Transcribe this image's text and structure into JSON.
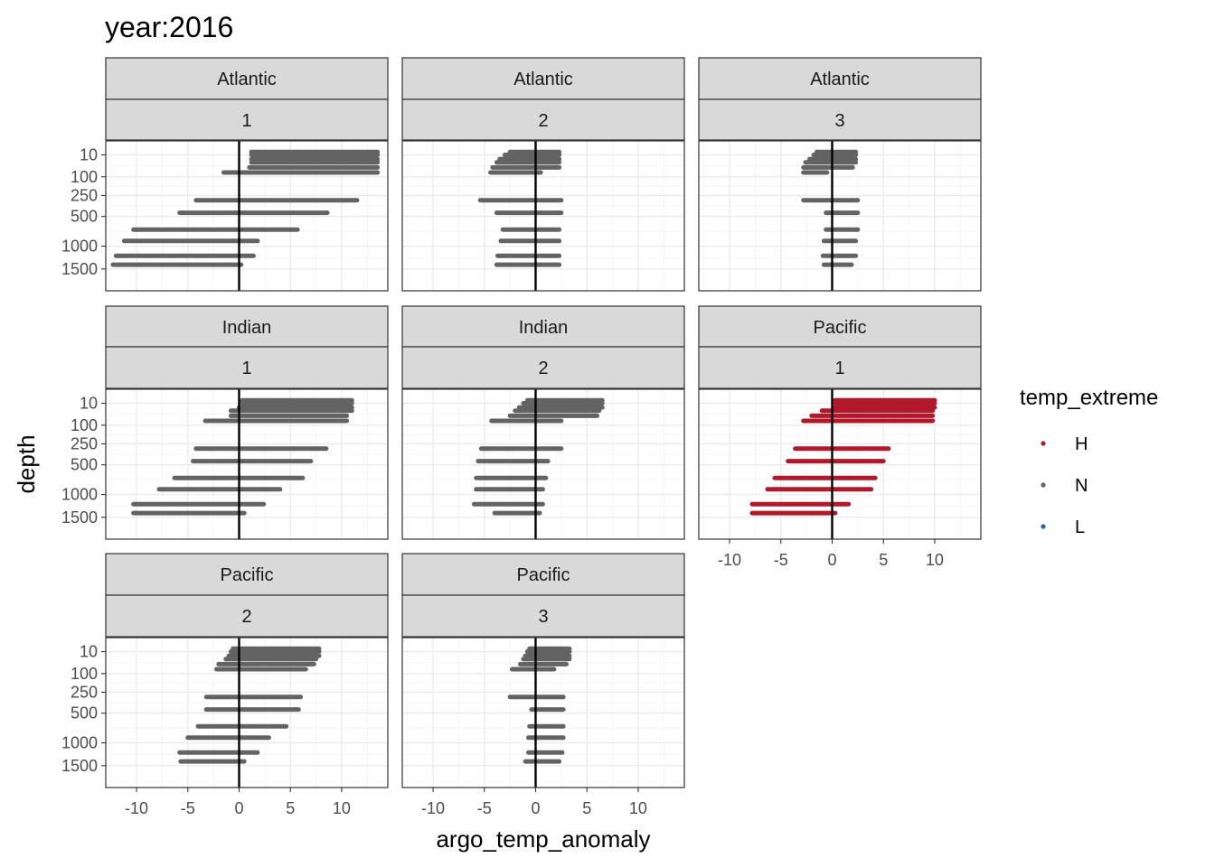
{
  "chart_data": {
    "type": "scatter",
    "title": "year:2016",
    "xlabel": "argo_temp_anomaly",
    "ylabel": "depth",
    "xlim": [
      -13,
      14.5
    ],
    "x_ticks": [
      -10,
      -5,
      0,
      5,
      10
    ],
    "x_tick_labels": [
      "-10",
      "-5",
      "0",
      "5",
      "10"
    ],
    "y_ticks": [
      10,
      100,
      250,
      500,
      1000,
      1500
    ],
    "y_tick_labels": [
      "10",
      "100",
      "250",
      "500",
      "1000",
      "1500"
    ],
    "y_reversed": true,
    "y_scale": "sqrt",
    "reference_line": {
      "x": 0,
      "color": "#000000"
    },
    "grid": true,
    "legend": {
      "title": "temp_extreme",
      "position": "right",
      "entries": [
        {
          "label": "H",
          "color": "#b2182b"
        },
        {
          "label": "N",
          "color": "#636363"
        },
        {
          "label": "L",
          "color": "#2166ac"
        }
      ]
    },
    "panels": [
      {
        "strip_top": "Atlantic",
        "strip_bottom": "1",
        "show_y_axis": true,
        "show_x_axis": false,
        "segments": [
          {
            "depth": 5,
            "xmin": 1.2,
            "xmax": 13.5,
            "group": "N"
          },
          {
            "depth": 10,
            "xmin": 1.2,
            "xmax": 13.5,
            "group": "N"
          },
          {
            "depth": 20,
            "xmin": 1.2,
            "xmax": 13.5,
            "group": "N"
          },
          {
            "depth": 30,
            "xmin": 1.2,
            "xmax": 13.5,
            "group": "N"
          },
          {
            "depth": 50,
            "xmin": 1.0,
            "xmax": 13.5,
            "group": "N"
          },
          {
            "depth": 75,
            "xmin": -1.5,
            "xmax": 13.5,
            "group": "N"
          },
          {
            "depth": 300,
            "xmin": -4.2,
            "xmax": 11.5,
            "group": "N"
          },
          {
            "depth": 450,
            "xmin": -5.8,
            "xmax": 8.6,
            "group": "N"
          },
          {
            "depth": 700,
            "xmin": -10.3,
            "xmax": 5.7,
            "group": "N"
          },
          {
            "depth": 900,
            "xmin": -11.2,
            "xmax": 1.8,
            "group": "N"
          },
          {
            "depth": 1200,
            "xmin": -12.0,
            "xmax": 1.4,
            "group": "N"
          },
          {
            "depth": 1400,
            "xmin": -12.3,
            "xmax": 0.2,
            "group": "N"
          }
        ]
      },
      {
        "strip_top": "Atlantic",
        "strip_bottom": "2",
        "show_y_axis": false,
        "show_x_axis": false,
        "segments": [
          {
            "depth": 5,
            "xmin": -2.5,
            "xmax": 2.3,
            "group": "N"
          },
          {
            "depth": 10,
            "xmin": -3.0,
            "xmax": 2.3,
            "group": "N"
          },
          {
            "depth": 20,
            "xmin": -3.5,
            "xmax": 2.3,
            "group": "N"
          },
          {
            "depth": 30,
            "xmin": -3.8,
            "xmax": 2.3,
            "group": "N"
          },
          {
            "depth": 50,
            "xmin": -4.2,
            "xmax": 2.3,
            "group": "N"
          },
          {
            "depth": 75,
            "xmin": -4.4,
            "xmax": 0.5,
            "group": "N"
          },
          {
            "depth": 300,
            "xmin": -5.4,
            "xmax": 2.5,
            "group": "N"
          },
          {
            "depth": 450,
            "xmin": -3.8,
            "xmax": 2.5,
            "group": "N"
          },
          {
            "depth": 700,
            "xmin": -3.2,
            "xmax": 2.3,
            "group": "N"
          },
          {
            "depth": 900,
            "xmin": -3.4,
            "xmax": 2.3,
            "group": "N"
          },
          {
            "depth": 1200,
            "xmin": -3.7,
            "xmax": 2.3,
            "group": "N"
          },
          {
            "depth": 1400,
            "xmin": -3.8,
            "xmax": 2.3,
            "group": "N"
          }
        ]
      },
      {
        "strip_top": "Atlantic",
        "strip_bottom": "3",
        "show_y_axis": false,
        "show_x_axis": false,
        "segments": [
          {
            "depth": 5,
            "xmin": -1.5,
            "xmax": 2.3,
            "group": "N"
          },
          {
            "depth": 10,
            "xmin": -1.8,
            "xmax": 2.3,
            "group": "N"
          },
          {
            "depth": 20,
            "xmin": -2.2,
            "xmax": 2.3,
            "group": "N"
          },
          {
            "depth": 30,
            "xmin": -2.6,
            "xmax": 2.3,
            "group": "N"
          },
          {
            "depth": 50,
            "xmin": -2.8,
            "xmax": 2.0,
            "group": "N"
          },
          {
            "depth": 75,
            "xmin": -2.8,
            "xmax": -0.5,
            "group": "N"
          },
          {
            "depth": 300,
            "xmin": -2.8,
            "xmax": 2.5,
            "group": "N"
          },
          {
            "depth": 450,
            "xmin": -0.6,
            "xmax": 2.5,
            "group": "N"
          },
          {
            "depth": 700,
            "xmin": -0.6,
            "xmax": 2.5,
            "group": "N"
          },
          {
            "depth": 900,
            "xmin": -0.8,
            "xmax": 2.3,
            "group": "N"
          },
          {
            "depth": 1200,
            "xmin": -0.9,
            "xmax": 2.3,
            "group": "N"
          },
          {
            "depth": 1400,
            "xmin": -0.8,
            "xmax": 1.9,
            "group": "N"
          }
        ]
      },
      {
        "strip_top": "Indian",
        "strip_bottom": "1",
        "show_y_axis": true,
        "show_x_axis": false,
        "segments": [
          {
            "depth": 5,
            "xmin": 0.3,
            "xmax": 11.0,
            "group": "N"
          },
          {
            "depth": 10,
            "xmin": 0.3,
            "xmax": 11.0,
            "group": "N"
          },
          {
            "depth": 20,
            "xmin": 0.0,
            "xmax": 11.0,
            "group": "N"
          },
          {
            "depth": 30,
            "xmin": -0.8,
            "xmax": 11.0,
            "group": "N"
          },
          {
            "depth": 50,
            "xmin": -0.8,
            "xmax": 10.5,
            "group": "N"
          },
          {
            "depth": 75,
            "xmin": -3.3,
            "xmax": 10.5,
            "group": "N"
          },
          {
            "depth": 300,
            "xmin": -4.2,
            "xmax": 8.5,
            "group": "N"
          },
          {
            "depth": 450,
            "xmin": -4.5,
            "xmax": 7.0,
            "group": "N"
          },
          {
            "depth": 700,
            "xmin": -6.3,
            "xmax": 6.2,
            "group": "N"
          },
          {
            "depth": 900,
            "xmin": -7.8,
            "xmax": 4.0,
            "group": "N"
          },
          {
            "depth": 1200,
            "xmin": -10.3,
            "xmax": 2.4,
            "group": "N"
          },
          {
            "depth": 1400,
            "xmin": -10.3,
            "xmax": 0.5,
            "group": "N"
          }
        ]
      },
      {
        "strip_top": "Indian",
        "strip_bottom": "2",
        "show_y_axis": false,
        "show_x_axis": false,
        "segments": [
          {
            "depth": 5,
            "xmin": -0.8,
            "xmax": 6.5,
            "group": "N"
          },
          {
            "depth": 10,
            "xmin": -1.2,
            "xmax": 6.5,
            "group": "N"
          },
          {
            "depth": 20,
            "xmin": -1.6,
            "xmax": 6.5,
            "group": "N"
          },
          {
            "depth": 30,
            "xmin": -2.0,
            "xmax": 6.2,
            "group": "N"
          },
          {
            "depth": 50,
            "xmin": -2.5,
            "xmax": 6.0,
            "group": "N"
          },
          {
            "depth": 75,
            "xmin": -4.3,
            "xmax": 2.5,
            "group": "N"
          },
          {
            "depth": 300,
            "xmin": -5.3,
            "xmax": 2.5,
            "group": "N"
          },
          {
            "depth": 450,
            "xmin": -5.6,
            "xmax": 1.2,
            "group": "N"
          },
          {
            "depth": 700,
            "xmin": -5.8,
            "xmax": 1.0,
            "group": "N"
          },
          {
            "depth": 900,
            "xmin": -5.8,
            "xmax": 0.7,
            "group": "N"
          },
          {
            "depth": 1200,
            "xmin": -6.0,
            "xmax": 0.7,
            "group": "N"
          },
          {
            "depth": 1400,
            "xmin": -4.0,
            "xmax": 0.4,
            "group": "N"
          }
        ]
      },
      {
        "strip_top": "Pacific",
        "strip_bottom": "1",
        "show_y_axis": false,
        "show_x_axis": true,
        "segments": [
          {
            "depth": 5,
            "xmin": 0.3,
            "xmax": 10.0,
            "group": "H"
          },
          {
            "depth": 10,
            "xmin": 0.3,
            "xmax": 10.0,
            "group": "H"
          },
          {
            "depth": 20,
            "xmin": 0.2,
            "xmax": 10.0,
            "group": "H"
          },
          {
            "depth": 30,
            "xmin": -1.0,
            "xmax": 9.8,
            "group": "H"
          },
          {
            "depth": 50,
            "xmin": -2.0,
            "xmax": 9.8,
            "group": "H"
          },
          {
            "depth": 75,
            "xmin": -2.8,
            "xmax": 9.8,
            "group": "H"
          },
          {
            "depth": 300,
            "xmin": -3.6,
            "xmax": 5.5,
            "group": "H"
          },
          {
            "depth": 450,
            "xmin": -4.3,
            "xmax": 5.0,
            "group": "H"
          },
          {
            "depth": 700,
            "xmin": -5.6,
            "xmax": 4.2,
            "group": "H"
          },
          {
            "depth": 900,
            "xmin": -6.3,
            "xmax": 3.8,
            "group": "H"
          },
          {
            "depth": 1200,
            "xmin": -7.8,
            "xmax": 1.6,
            "group": "H"
          },
          {
            "depth": 1400,
            "xmin": -7.8,
            "xmax": 0.3,
            "group": "H"
          }
        ]
      },
      {
        "strip_top": "Pacific",
        "strip_bottom": "2",
        "show_y_axis": true,
        "show_x_axis": true,
        "segments": [
          {
            "depth": 5,
            "xmin": -0.6,
            "xmax": 7.8,
            "group": "N"
          },
          {
            "depth": 10,
            "xmin": -0.8,
            "xmax": 7.8,
            "group": "N"
          },
          {
            "depth": 20,
            "xmin": -1.0,
            "xmax": 7.8,
            "group": "N"
          },
          {
            "depth": 30,
            "xmin": -1.3,
            "xmax": 7.5,
            "group": "N"
          },
          {
            "depth": 50,
            "xmin": -2.0,
            "xmax": 7.3,
            "group": "N"
          },
          {
            "depth": 75,
            "xmin": -2.2,
            "xmax": 6.5,
            "group": "N"
          },
          {
            "depth": 300,
            "xmin": -3.2,
            "xmax": 6.0,
            "group": "N"
          },
          {
            "depth": 450,
            "xmin": -3.2,
            "xmax": 5.8,
            "group": "N"
          },
          {
            "depth": 700,
            "xmin": -4.0,
            "xmax": 4.6,
            "group": "N"
          },
          {
            "depth": 900,
            "xmin": -5.0,
            "xmax": 2.9,
            "group": "N"
          },
          {
            "depth": 1200,
            "xmin": -5.8,
            "xmax": 1.8,
            "group": "N"
          },
          {
            "depth": 1400,
            "xmin": -5.7,
            "xmax": 0.5,
            "group": "N"
          }
        ]
      },
      {
        "strip_top": "Pacific",
        "strip_bottom": "3",
        "show_y_axis": false,
        "show_x_axis": true,
        "segments": [
          {
            "depth": 5,
            "xmin": -0.6,
            "xmax": 3.3,
            "group": "N"
          },
          {
            "depth": 10,
            "xmin": -0.8,
            "xmax": 3.3,
            "group": "N"
          },
          {
            "depth": 20,
            "xmin": -1.0,
            "xmax": 3.3,
            "group": "N"
          },
          {
            "depth": 30,
            "xmin": -1.2,
            "xmax": 3.3,
            "group": "N"
          },
          {
            "depth": 50,
            "xmin": -1.5,
            "xmax": 3.0,
            "group": "N"
          },
          {
            "depth": 75,
            "xmin": -2.3,
            "xmax": 1.8,
            "group": "N"
          },
          {
            "depth": 300,
            "xmin": -2.5,
            "xmax": 2.7,
            "group": "N"
          },
          {
            "depth": 450,
            "xmin": -0.4,
            "xmax": 2.7,
            "group": "N"
          },
          {
            "depth": 700,
            "xmin": -0.6,
            "xmax": 2.7,
            "group": "N"
          },
          {
            "depth": 900,
            "xmin": -0.7,
            "xmax": 2.7,
            "group": "N"
          },
          {
            "depth": 1200,
            "xmin": -0.7,
            "xmax": 2.6,
            "group": "N"
          },
          {
            "depth": 1400,
            "xmin": -1.0,
            "xmax": 2.3,
            "group": "N"
          }
        ]
      }
    ]
  }
}
